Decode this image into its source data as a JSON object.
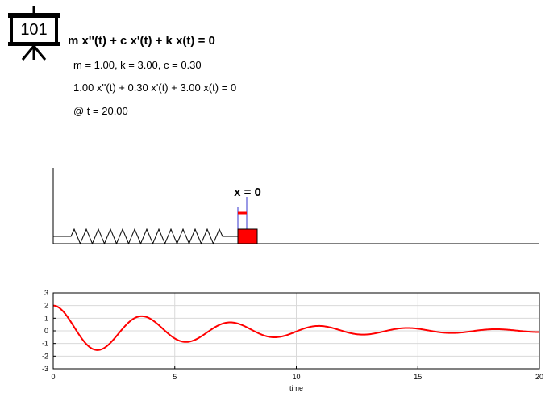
{
  "logo": {
    "text": "101"
  },
  "equation": "m x''(t) + c x'(t) + k x(t) = 0",
  "params_line": "m = 1.00, k = 3.00, c = 0.30",
  "ode_line": "1.00 x''(t) + 0.30 x'(t) + 3.00 x(t) = 0",
  "time_line": "@ t = 20.00",
  "scene": {
    "equilibrium_label": "x = 0"
  },
  "colors": {
    "mass": "#ff0000",
    "curve": "#ff0000",
    "marker": "#3333cc",
    "grid": "#d9d9d9"
  },
  "chart_data": {
    "type": "line",
    "title": "",
    "xlabel": "time",
    "ylabel": "",
    "xlim": [
      0,
      20
    ],
    "ylim": [
      -3,
      3
    ],
    "xticks": [
      0,
      5,
      10,
      15,
      20
    ],
    "yticks": [
      -3,
      -2,
      -1,
      0,
      1,
      2,
      3
    ],
    "grid": true,
    "model": {
      "m": 1.0,
      "c": 0.3,
      "k": 3.0,
      "x0": 2.0,
      "v0": 0.0
    },
    "series": [
      {
        "x": [
          0,
          1,
          2,
          3,
          4,
          5,
          6,
          7,
          8,
          9,
          10,
          11,
          12,
          13,
          14,
          15,
          16,
          17,
          18,
          19,
          20
        ],
        "y": [
          2.0,
          -0.16,
          -1.42,
          0.2,
          1.01,
          -0.21,
          -0.72,
          0.2,
          0.51,
          -0.18,
          -0.36,
          0.16,
          0.26,
          -0.13,
          -0.18,
          0.11,
          0.13,
          -0.09,
          -0.09,
          0.07,
          -0.06
        ]
      }
    ]
  }
}
